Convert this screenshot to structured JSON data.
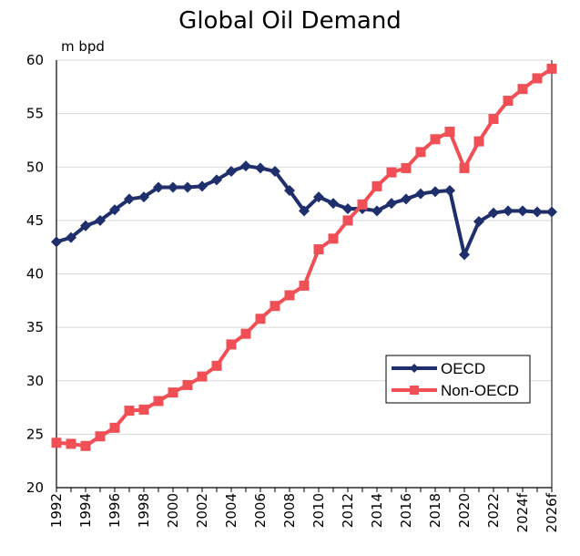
{
  "chart_data": {
    "type": "line",
    "title": "Global Oil Demand",
    "ylabel": "m bpd",
    "xlabel": "",
    "ylim": [
      20,
      60
    ],
    "yticks": [
      20,
      25,
      30,
      35,
      40,
      45,
      50,
      55,
      60
    ],
    "grid": "horizontal",
    "legend_position": "bottom-right",
    "x": [
      "1992",
      "1993",
      "1994",
      "1995",
      "1996",
      "1997",
      "1998",
      "1999",
      "2000",
      "2001",
      "2002",
      "2003",
      "2004",
      "2005",
      "2006",
      "2007",
      "2008",
      "2009",
      "2010",
      "2011",
      "2012",
      "2013",
      "2014",
      "2015",
      "2016",
      "2017",
      "2018",
      "2019",
      "2020",
      "2021",
      "2022",
      "2023",
      "2024f",
      "2025f",
      "2026f"
    ],
    "xtick_labels": [
      "1992",
      "1994",
      "1996",
      "1998",
      "2000",
      "2002",
      "2004",
      "2006",
      "2008",
      "2010",
      "2012",
      "2014",
      "2016",
      "2018",
      "2020",
      "2022",
      "2024f",
      "2026f"
    ],
    "series": [
      {
        "name": "OECD",
        "color": "#1F2F6B",
        "marker": "diamond",
        "values": [
          43.0,
          43.4,
          44.5,
          45.0,
          46.0,
          47.0,
          47.2,
          48.1,
          48.1,
          48.1,
          48.2,
          48.8,
          49.6,
          50.1,
          49.9,
          49.6,
          47.8,
          45.9,
          47.2,
          46.6,
          46.1,
          46.1,
          45.9,
          46.6,
          47.0,
          47.5,
          47.7,
          47.8,
          41.8,
          44.9,
          45.7,
          45.9,
          45.9,
          45.8,
          45.8
        ]
      },
      {
        "name": "Non-OECD",
        "color": "#F04F56",
        "marker": "square",
        "values": [
          24.2,
          24.1,
          23.9,
          24.8,
          25.6,
          27.2,
          27.3,
          28.1,
          28.9,
          29.6,
          30.4,
          31.4,
          33.4,
          34.4,
          35.8,
          37.0,
          38.0,
          38.9,
          42.3,
          43.3,
          45.0,
          46.5,
          48.2,
          49.5,
          49.9,
          51.4,
          52.6,
          53.3,
          49.9,
          52.4,
          54.5,
          56.2,
          57.3,
          58.3,
          59.2
        ]
      }
    ]
  }
}
